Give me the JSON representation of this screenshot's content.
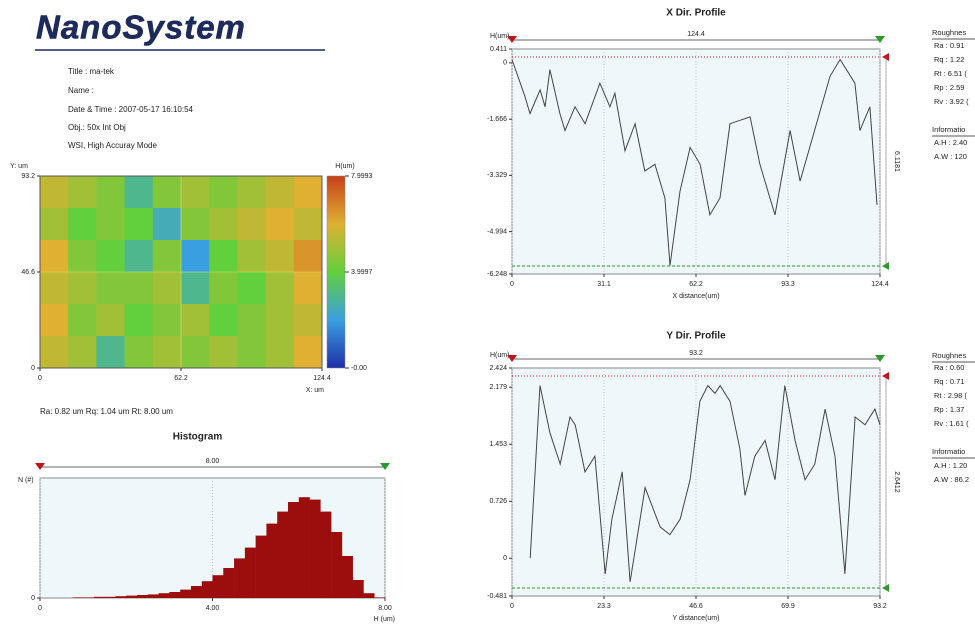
{
  "header": {
    "logo": "NanoSystem",
    "title": "Title : ma-tek",
    "name": "Name :",
    "datetime": "Date & Time : 2007-05-17 16:10:54",
    "objective": "Obj.: 50x Int Obj",
    "mode": "WSI, High Accuray Mode"
  },
  "summary": "Ra: 0.82 um  Rq: 1.04 um  Rt: 8.00 um",
  "x_panel": {
    "roughness": "Roughnes",
    "items": [
      "Ra : 0.91",
      "Rq : 1.22",
      "Rt : 6.51 (",
      "Rp : 2.59",
      "Rv : 3.92 ("
    ],
    "information": "Informatio",
    "info": [
      "A.H : 2.40",
      "A.W : 120"
    ]
  },
  "y_panel": {
    "roughness": "Roughnes",
    "items": [
      "Ra : 0.60",
      "Rq : 0.71",
      "Rt : 2.98 (",
      "Rp : 1.37",
      "Rv : 1.61 ("
    ],
    "information": "Informatio",
    "info": [
      "A.H : 1.20",
      "A.W : 86.2"
    ]
  },
  "chart_data": [
    {
      "type": "heatmap",
      "ylabel": "Y: um",
      "xlabel": "X: um",
      "clabel": "H(um)",
      "xlim": [
        0,
        124.4
      ],
      "ylim": [
        0,
        93.2
      ],
      "xticks": [
        0,
        62.2,
        124.4
      ],
      "yticks": [
        0,
        46.6,
        93.2
      ],
      "clim": [
        0,
        7.9993
      ],
      "cticks": [
        {
          "value": 0,
          "label": "-0.00"
        },
        3.9997,
        7.9993
      ],
      "colormap": [
        "#1f2fa8",
        "#3a9fe0",
        "#62cf3c",
        "#dfb032",
        "#c8401a"
      ],
      "z": [
        [
          5.5,
          5,
          4.5,
          3,
          4.5,
          5,
          4.5,
          5,
          5.5,
          6
        ],
        [
          5,
          4,
          4.5,
          4,
          2.5,
          4.5,
          5,
          5.5,
          6,
          5.5
        ],
        [
          6,
          4.5,
          4,
          3,
          4.5,
          2,
          4,
          5,
          5.5,
          6.5
        ],
        [
          5.5,
          5,
          4.5,
          4.5,
          5,
          3,
          4.5,
          4,
          5,
          6
        ],
        [
          6,
          4.5,
          5,
          4,
          4.5,
          5,
          4,
          4.5,
          5,
          5.5
        ],
        [
          5.5,
          5,
          3,
          4.5,
          5,
          4.5,
          5,
          4.5,
          5,
          6
        ]
      ]
    },
    {
      "type": "histogram",
      "title": "Histogram",
      "ylabel": "N (#)",
      "xlabel": "H (um)",
      "range_label": "8.00",
      "color": "#9c0e0e",
      "xlim": [
        0,
        8
      ],
      "ylim": [
        0,
        100
      ],
      "xticks": [
        0,
        {
          "value": 4,
          "label": "4.00"
        },
        {
          "value": 8,
          "label": "8.00"
        }
      ],
      "yticks": [
        0
      ],
      "grid": true,
      "bins": [
        0,
        0.25,
        0.5,
        0.75,
        1,
        1.25,
        1.5,
        1.75,
        2,
        2.25,
        2.5,
        2.75,
        3,
        3.25,
        3.5,
        3.75,
        4,
        4.25,
        4.5,
        4.75,
        5,
        5.25,
        5.5,
        5.75,
        6,
        6.25,
        6.5,
        6.75,
        7,
        7.25,
        7.5,
        7.75,
        8
      ],
      "counts": [
        0,
        0,
        0,
        0.5,
        0.5,
        1,
        1,
        1.5,
        2,
        2.5,
        3,
        4,
        5,
        7,
        10,
        14,
        19,
        25,
        33,
        42,
        52,
        62,
        72,
        80,
        84,
        82,
        72,
        55,
        35,
        15,
        4,
        0.5
      ]
    },
    {
      "type": "line",
      "title": "X Dir. Profile",
      "ylabel": "H(um)",
      "xlabel": "X distance(um)",
      "range_label": "124.4",
      "height_label": "6.1181",
      "color": "#444444",
      "grid": true,
      "xlim": [
        0,
        124.4
      ],
      "ylim": [
        -6.248,
        0.411
      ],
      "xticks": [
        0,
        31.1,
        62.2,
        93.3,
        124.4
      ],
      "yticks": [
        -6.248,
        -4.994,
        -3.329,
        -1.666,
        0,
        0.411
      ],
      "x": [
        0,
        4.4,
        6.1,
        9.5,
        11.2,
        12.8,
        16.2,
        17.9,
        21.3,
        24.7,
        29.7,
        33.1,
        34.8,
        38.2,
        41.6,
        44.9,
        48.3,
        51.7,
        53.4,
        56.8,
        60.2,
        63.6,
        66.9,
        70.3,
        73.7,
        80.5,
        83.8,
        88.9,
        94.0,
        97.4,
        107.5,
        110.9,
        115.9,
        117.6,
        121.0,
        123.4
      ],
      "values": [
        0.1,
        -1.0,
        -1.5,
        -0.8,
        -1.3,
        -0.2,
        -1.5,
        -2.0,
        -1.3,
        -1.8,
        -0.6,
        -1.3,
        -0.9,
        -2.6,
        -1.8,
        -3.2,
        -3.0,
        -4.0,
        -6.0,
        -3.8,
        -2.5,
        -3.0,
        -4.5,
        -4.0,
        -1.8,
        -1.6,
        -3.0,
        -4.5,
        -2.0,
        -3.5,
        -0.4,
        0.1,
        -0.6,
        -2.0,
        -1.3,
        -4.2
      ]
    },
    {
      "type": "line",
      "title": "Y Dir. Profile",
      "ylabel": "H(um)",
      "xlabel": "Y distance(um)",
      "range_label": "93.2",
      "height_label": "2.6412",
      "color": "#444444",
      "grid": true,
      "xlim": [
        0,
        93.2
      ],
      "ylim": [
        -0.481,
        2.424
      ],
      "xticks": [
        0,
        23.3,
        46.6,
        69.9,
        93.2
      ],
      "yticks": [
        -0.481,
        0,
        0.726,
        1.453,
        2.179,
        2.424
      ],
      "x": [
        4.6,
        7.1,
        9.6,
        12.2,
        14.7,
        16.0,
        18.5,
        21.0,
        23.6,
        25.3,
        27.9,
        29.9,
        33.7,
        37.5,
        40.0,
        42.6,
        45.1,
        47.6,
        49.6,
        51.4,
        52.7,
        55.2,
        57.7,
        59.0,
        61.5,
        64.1,
        66.6,
        69.1,
        71.7,
        74.2,
        76.7,
        79.3,
        81.8,
        84.3,
        86.9,
        89.4,
        91.9,
        93.2
      ],
      "values": [
        0,
        2.2,
        1.6,
        1.2,
        1.8,
        1.7,
        1.1,
        1.3,
        -0.2,
        0.5,
        1.1,
        -0.3,
        0.9,
        0.4,
        0.3,
        0.5,
        1.0,
        2.0,
        2.2,
        2.1,
        2.2,
        2.0,
        1.4,
        0.8,
        1.3,
        1.5,
        1.0,
        2.2,
        1.5,
        1.0,
        1.2,
        1.9,
        1.3,
        -0.2,
        1.8,
        1.7,
        1.9,
        1.7
      ]
    }
  ]
}
